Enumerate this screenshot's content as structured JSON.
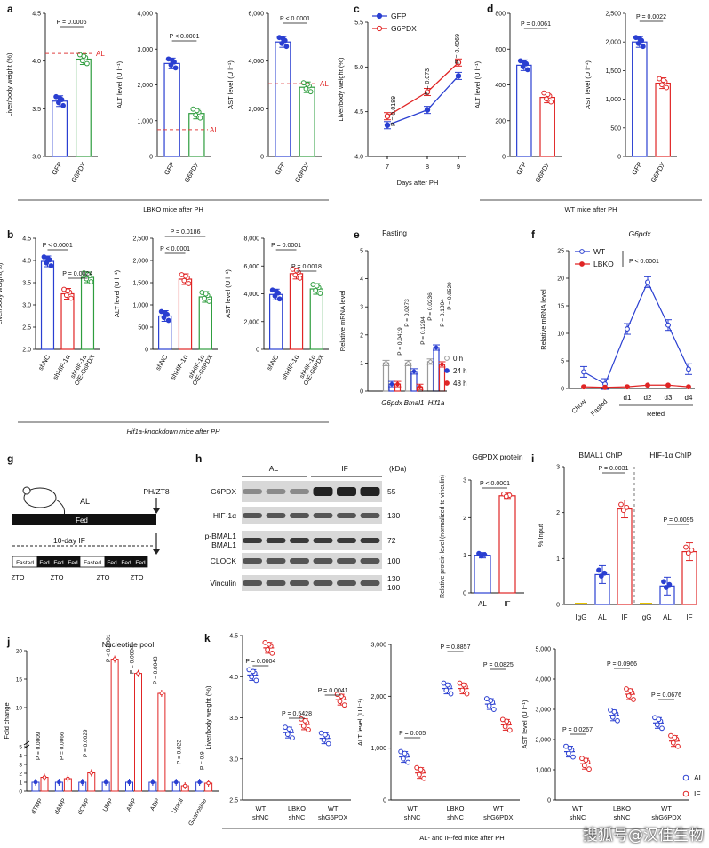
{
  "watermark": "搜狐号@汉佳生物",
  "colors": {
    "blue": "#2a3fd1",
    "green": "#2e9d3e",
    "red": "#e02525",
    "pink": "#f2a6a6",
    "grey": "#9a9a9a",
    "dashed": "#e04040"
  },
  "groups": [
    {
      "label": "LBKO mice after PH"
    },
    {
      "label": "WT mice after PH"
    },
    {
      "label": "Hif1a-knockdown mice after PH"
    },
    {
      "label": "AL- and IF-fed mice after PH"
    }
  ],
  "chart_data": [
    {
      "id": "a1",
      "panel_letter": "a",
      "type": "bar",
      "categories": [
        "GFP",
        "G6PDX"
      ],
      "values": [
        3.58,
        4.02
      ],
      "ylabel": "Liver/body weight (%)",
      "ylim": [
        3.0,
        4.5
      ],
      "yticks": [
        "3.0",
        "3.5",
        "4.0",
        "4.5"
      ],
      "reference_line": {
        "label": "AL",
        "value": 4.08
      },
      "annotations": [
        "P = 0.0006"
      ],
      "colors": [
        "blue",
        "green"
      ]
    },
    {
      "id": "a2",
      "type": "bar",
      "categories": [
        "GFP",
        "G6PDX"
      ],
      "values": [
        2600,
        1200
      ],
      "ylabel": "ALT level (U l⁻¹)",
      "ylim": [
        0,
        4000
      ],
      "yticks": [
        "0",
        "1,000",
        "2,000",
        "3,000",
        "4,000"
      ],
      "reference_line": {
        "label": "AL",
        "value": 750
      },
      "annotations": [
        "P < 0.0001"
      ],
      "colors": [
        "blue",
        "green"
      ]
    },
    {
      "id": "a3",
      "type": "bar",
      "categories": [
        "GFP",
        "G6PDX"
      ],
      "values": [
        4800,
        2900
      ],
      "ylabel": "AST level (U l⁻¹)",
      "ylim": [
        0,
        6000
      ],
      "yticks": [
        "0",
        "2,000",
        "4,000",
        "6,000"
      ],
      "reference_line": {
        "label": "AL",
        "value": 3050
      },
      "annotations": [
        "P < 0.0001"
      ],
      "colors": [
        "blue",
        "green"
      ]
    },
    {
      "id": "c",
      "panel_letter": "c",
      "type": "line",
      "x": [
        7,
        8,
        9
      ],
      "xlabel": "Days after PH",
      "ylabel": "Liver/body weight (%)",
      "ylim": [
        4.0,
        5.5
      ],
      "yticks": [
        "4.0",
        "4.5",
        "5.0",
        "5.5"
      ],
      "series": [
        {
          "name": "GFP",
          "values": [
            4.35,
            4.52,
            4.9
          ]
        },
        {
          "name": "G6PDX",
          "values": [
            4.45,
            4.72,
            5.05
          ]
        }
      ],
      "annotations": [
        "P = 0.0189",
        "P = 0.073",
        "P = 0.4069"
      ]
    },
    {
      "id": "d1",
      "panel_letter": "d",
      "type": "bar",
      "categories": [
        "GFP",
        "G6PDX"
      ],
      "values": [
        510,
        330
      ],
      "ylabel": "ALT level (U l⁻¹)",
      "ylim": [
        0,
        800
      ],
      "yticks": [
        "0",
        "200",
        "400",
        "600",
        "800"
      ],
      "annotations": [
        "P = 0.0061"
      ],
      "colors": [
        "blue",
        "red"
      ]
    },
    {
      "id": "d2",
      "type": "bar",
      "categories": [
        "GFP",
        "G6PDX"
      ],
      "values": [
        2000,
        1280
      ],
      "ylabel": "AST level (U l⁻¹)",
      "ylim": [
        0,
        2500
      ],
      "yticks": [
        "0",
        "500",
        "1,000",
        "1,500",
        "2,000",
        "2,500"
      ],
      "annotations": [
        "P = 0.0022"
      ],
      "colors": [
        "blue",
        "red"
      ]
    },
    {
      "id": "b1",
      "panel_letter": "b",
      "type": "bar",
      "categories": [
        "shNC",
        "shHIF-1α",
        "shHIF-1α O/E-G6PDX"
      ],
      "values": [
        3.98,
        3.25,
        3.62
      ],
      "ylabel": "Liver/body weight(%)",
      "ylim": [
        2.0,
        4.5
      ],
      "yticks": [
        "2.0",
        "2.5",
        "3.0",
        "3.5",
        "4.0",
        "4.5"
      ],
      "annotations": [
        "P < 0.0001",
        "P = 0.0024"
      ],
      "colors": [
        "blue",
        "red",
        "green"
      ]
    },
    {
      "id": "b2",
      "type": "bar",
      "categories": [
        "shNC",
        "shHIF-1α",
        "shHIF-1α O/E-G6PDX"
      ],
      "values": [
        750,
        1580,
        1180
      ],
      "ylabel": "ALT level (U l⁻¹)",
      "ylim": [
        0,
        2500
      ],
      "yticks": [
        "0",
        "500",
        "1,000",
        "1,500",
        "2,000",
        "2,500"
      ],
      "annotations": [
        "P = 0.0186",
        "P < 0.0001"
      ],
      "colors": [
        "blue",
        "red",
        "green"
      ]
    },
    {
      "id": "b3",
      "type": "bar",
      "categories": [
        "shNC",
        "shHIF-1α",
        "shHIF-1α O/E-G6PDX"
      ],
      "values": [
        3950,
        5450,
        4350
      ],
      "ylabel": "AST level (U l⁻¹)",
      "ylim": [
        0,
        8000
      ],
      "yticks": [
        "0",
        "2,000",
        "4,000",
        "6,000",
        "8,000"
      ],
      "annotations": [
        "P = 0.0001",
        "P = 0.0018"
      ],
      "colors": [
        "blue",
        "red",
        "green"
      ]
    },
    {
      "id": "e",
      "panel_letter": "e",
      "type": "bar",
      "title": "Fasting",
      "categories": [
        "G6pdx",
        "Bmal1",
        "Hif1a"
      ],
      "ylabel": "Relative mRNA level",
      "ylim": [
        0,
        5
      ],
      "yticks": [
        "0",
        "1",
        "2",
        "3",
        "4",
        "5"
      ],
      "series": [
        {
          "name": "0 h",
          "values": [
            1.0,
            1.0,
            1.05
          ]
        },
        {
          "name": "24 h",
          "values": [
            0.25,
            0.7,
            1.55
          ]
        },
        {
          "name": "48 h",
          "values": [
            0.25,
            0.15,
            0.95
          ]
        }
      ],
      "annotations": [
        "P = 0.0419",
        "P = 0.0273",
        "P = 0.1294",
        "P = 0.0236",
        "P = 0.1304",
        "P = 0.9529"
      ]
    },
    {
      "id": "f",
      "panel_letter": "f",
      "type": "line",
      "title": "G6pdx",
      "x": [
        "Chow",
        "Fasted",
        "d1",
        "d2",
        "d3",
        "d4"
      ],
      "xgroup": "Refed",
      "ylabel": "Relative mRNA level",
      "ylim": [
        0,
        25
      ],
      "yticks": [
        "0",
        "5",
        "10",
        "15",
        "20",
        "25"
      ],
      "series": [
        {
          "name": "WT",
          "values": [
            3.0,
            0.8,
            10.8,
            19.3,
            11.5,
            3.5
          ]
        },
        {
          "name": "LBKO",
          "values": [
            0.3,
            0.2,
            0.3,
            0.6,
            0.6,
            0.3
          ]
        }
      ],
      "annotations": [
        "P < 0.0001"
      ]
    },
    {
      "id": "h2",
      "type": "bar",
      "title": "G6PDX protein",
      "categories": [
        "AL",
        "IF"
      ],
      "values": [
        1.0,
        2.58
      ],
      "ylabel": "Relative protein level (normalized to vinculin)",
      "ylim": [
        0,
        3
      ],
      "yticks": [
        "0",
        "1",
        "2",
        "3"
      ],
      "annotations": [
        "P < 0.0001"
      ],
      "colors": [
        "blue",
        "red"
      ]
    },
    {
      "id": "i",
      "panel_letter": "i",
      "type": "bar",
      "titles": [
        "BMAL1 ChIP",
        "HIF-1α ChIP"
      ],
      "categories": [
        "IgG",
        "AL",
        "IF",
        "IgG",
        "AL",
        "IF"
      ],
      "values": [
        0.0,
        0.65,
        2.08,
        0.0,
        0.4,
        1.15
      ],
      "ylabel": "% Input",
      "ylim": [
        0,
        3
      ],
      "yticks": [
        "0",
        "1",
        "2",
        "3"
      ],
      "annotations": [
        "P = 0.0031",
        "P = 0.0095"
      ],
      "colors": [
        "yellow",
        "blue",
        "red",
        "yellow",
        "blue",
        "red"
      ]
    },
    {
      "id": "j",
      "panel_letter": "j",
      "type": "bar",
      "title": "Nucleotide pool",
      "categories": [
        "dTMP",
        "dAMP",
        "dCMP",
        "UMP",
        "AMP",
        "ADP",
        "Uracil",
        "Guanosine"
      ],
      "ylabel": "Fold change",
      "ylim": [
        0,
        20
      ],
      "yticks": [
        "0",
        "1",
        "2",
        "3",
        "4",
        "5",
        "10",
        "15",
        "20"
      ],
      "series": [
        {
          "name": "AL",
          "values": [
            1,
            1,
            1,
            1,
            1,
            1,
            1,
            1
          ]
        },
        {
          "name": "IF",
          "values": [
            1.55,
            1.4,
            2.05,
            18.5,
            16.0,
            12.5,
            0.6,
            0.9
          ]
        }
      ],
      "annotations": [
        "P = 0.0009",
        "P = 0.0066",
        "P = 0.0029",
        "P < 0.0001",
        "P = 0.0004",
        "P = 0.0043",
        "P = 0.022",
        "P = 0.9"
      ]
    },
    {
      "id": "k1",
      "panel_letter": "k",
      "type": "bar",
      "categories": [
        "WT shNC",
        "LBKO shNC",
        "WT shG6PDX"
      ],
      "ylabel": "Liver/body weight (%)",
      "ylim": [
        2.5,
        4.5
      ],
      "yticks": [
        "2.5",
        "3.0",
        "3.5",
        "4.0",
        "4.5"
      ],
      "series": [
        {
          "name": "AL",
          "values": [
            4.02,
            3.32,
            3.25
          ]
        },
        {
          "name": "IF",
          "values": [
            4.35,
            3.42,
            3.72
          ]
        }
      ],
      "annotations": [
        "P = 0.0004",
        "P = 0.5428",
        "P = 0.0041"
      ]
    },
    {
      "id": "k2",
      "type": "bar",
      "categories": [
        "WT shNC",
        "LBKO shNC",
        "WT shG6PDX"
      ],
      "ylabel": "ALT level (U l⁻¹)",
      "ylim": [
        0,
        3000
      ],
      "yticks": [
        "0",
        "1,000",
        "2,000",
        "3,000"
      ],
      "series": [
        {
          "name": "AL",
          "values": [
            830,
            2150,
            1850
          ]
        },
        {
          "name": "IF",
          "values": [
            520,
            2150,
            1450
          ]
        }
      ],
      "annotations": [
        "P = 0.005",
        "P = 0.8857",
        "P = 0.0825"
      ]
    },
    {
      "id": "k3",
      "type": "bar",
      "categories": [
        "WT shNC",
        "LBKO shNC",
        "WT shG6PDX"
      ],
      "ylabel": "AST level (U l⁻¹)",
      "ylim": [
        0,
        5000
      ],
      "yticks": [
        "0",
        "1,000",
        "2,000",
        "3,000",
        "4,000",
        "5,000"
      ],
      "series": [
        {
          "name": "AL",
          "values": [
            1600,
            2800,
            2550
          ]
        },
        {
          "name": "IF",
          "values": [
            1200,
            3500,
            1950
          ]
        }
      ],
      "annotations": [
        "P = 0.0267",
        "P = 0.0966",
        "P = 0.0676"
      ]
    }
  ],
  "blot": {
    "panel_letter": "h",
    "conditions": [
      "AL",
      "IF"
    ],
    "kda_label": "(kDa)",
    "rows": [
      {
        "name": "G6PDX",
        "kda": [
          "55"
        ]
      },
      {
        "name": "HIF-1α",
        "kda": [
          "130"
        ]
      },
      {
        "name": "p-BMAL1\nBMAL1",
        "kda": [
          "72"
        ]
      },
      {
        "name": "CLOCK",
        "kda": [
          "100"
        ]
      },
      {
        "name": "Vinculin",
        "kda": [
          "130",
          "100"
        ]
      }
    ]
  },
  "schematic": {
    "panel_letter": "g",
    "zt_label": "PH/ZT8",
    "al_label": "AL",
    "fed_label": "Fed",
    "if_label": "10-day IF",
    "segments": [
      "Fasted",
      "Fed",
      "Fed",
      "Fed",
      "Fasted",
      "Fed",
      "Fed",
      "Fed"
    ],
    "zto_labels": [
      "ZTO",
      "ZTO",
      "ZTO",
      "ZTO"
    ]
  }
}
